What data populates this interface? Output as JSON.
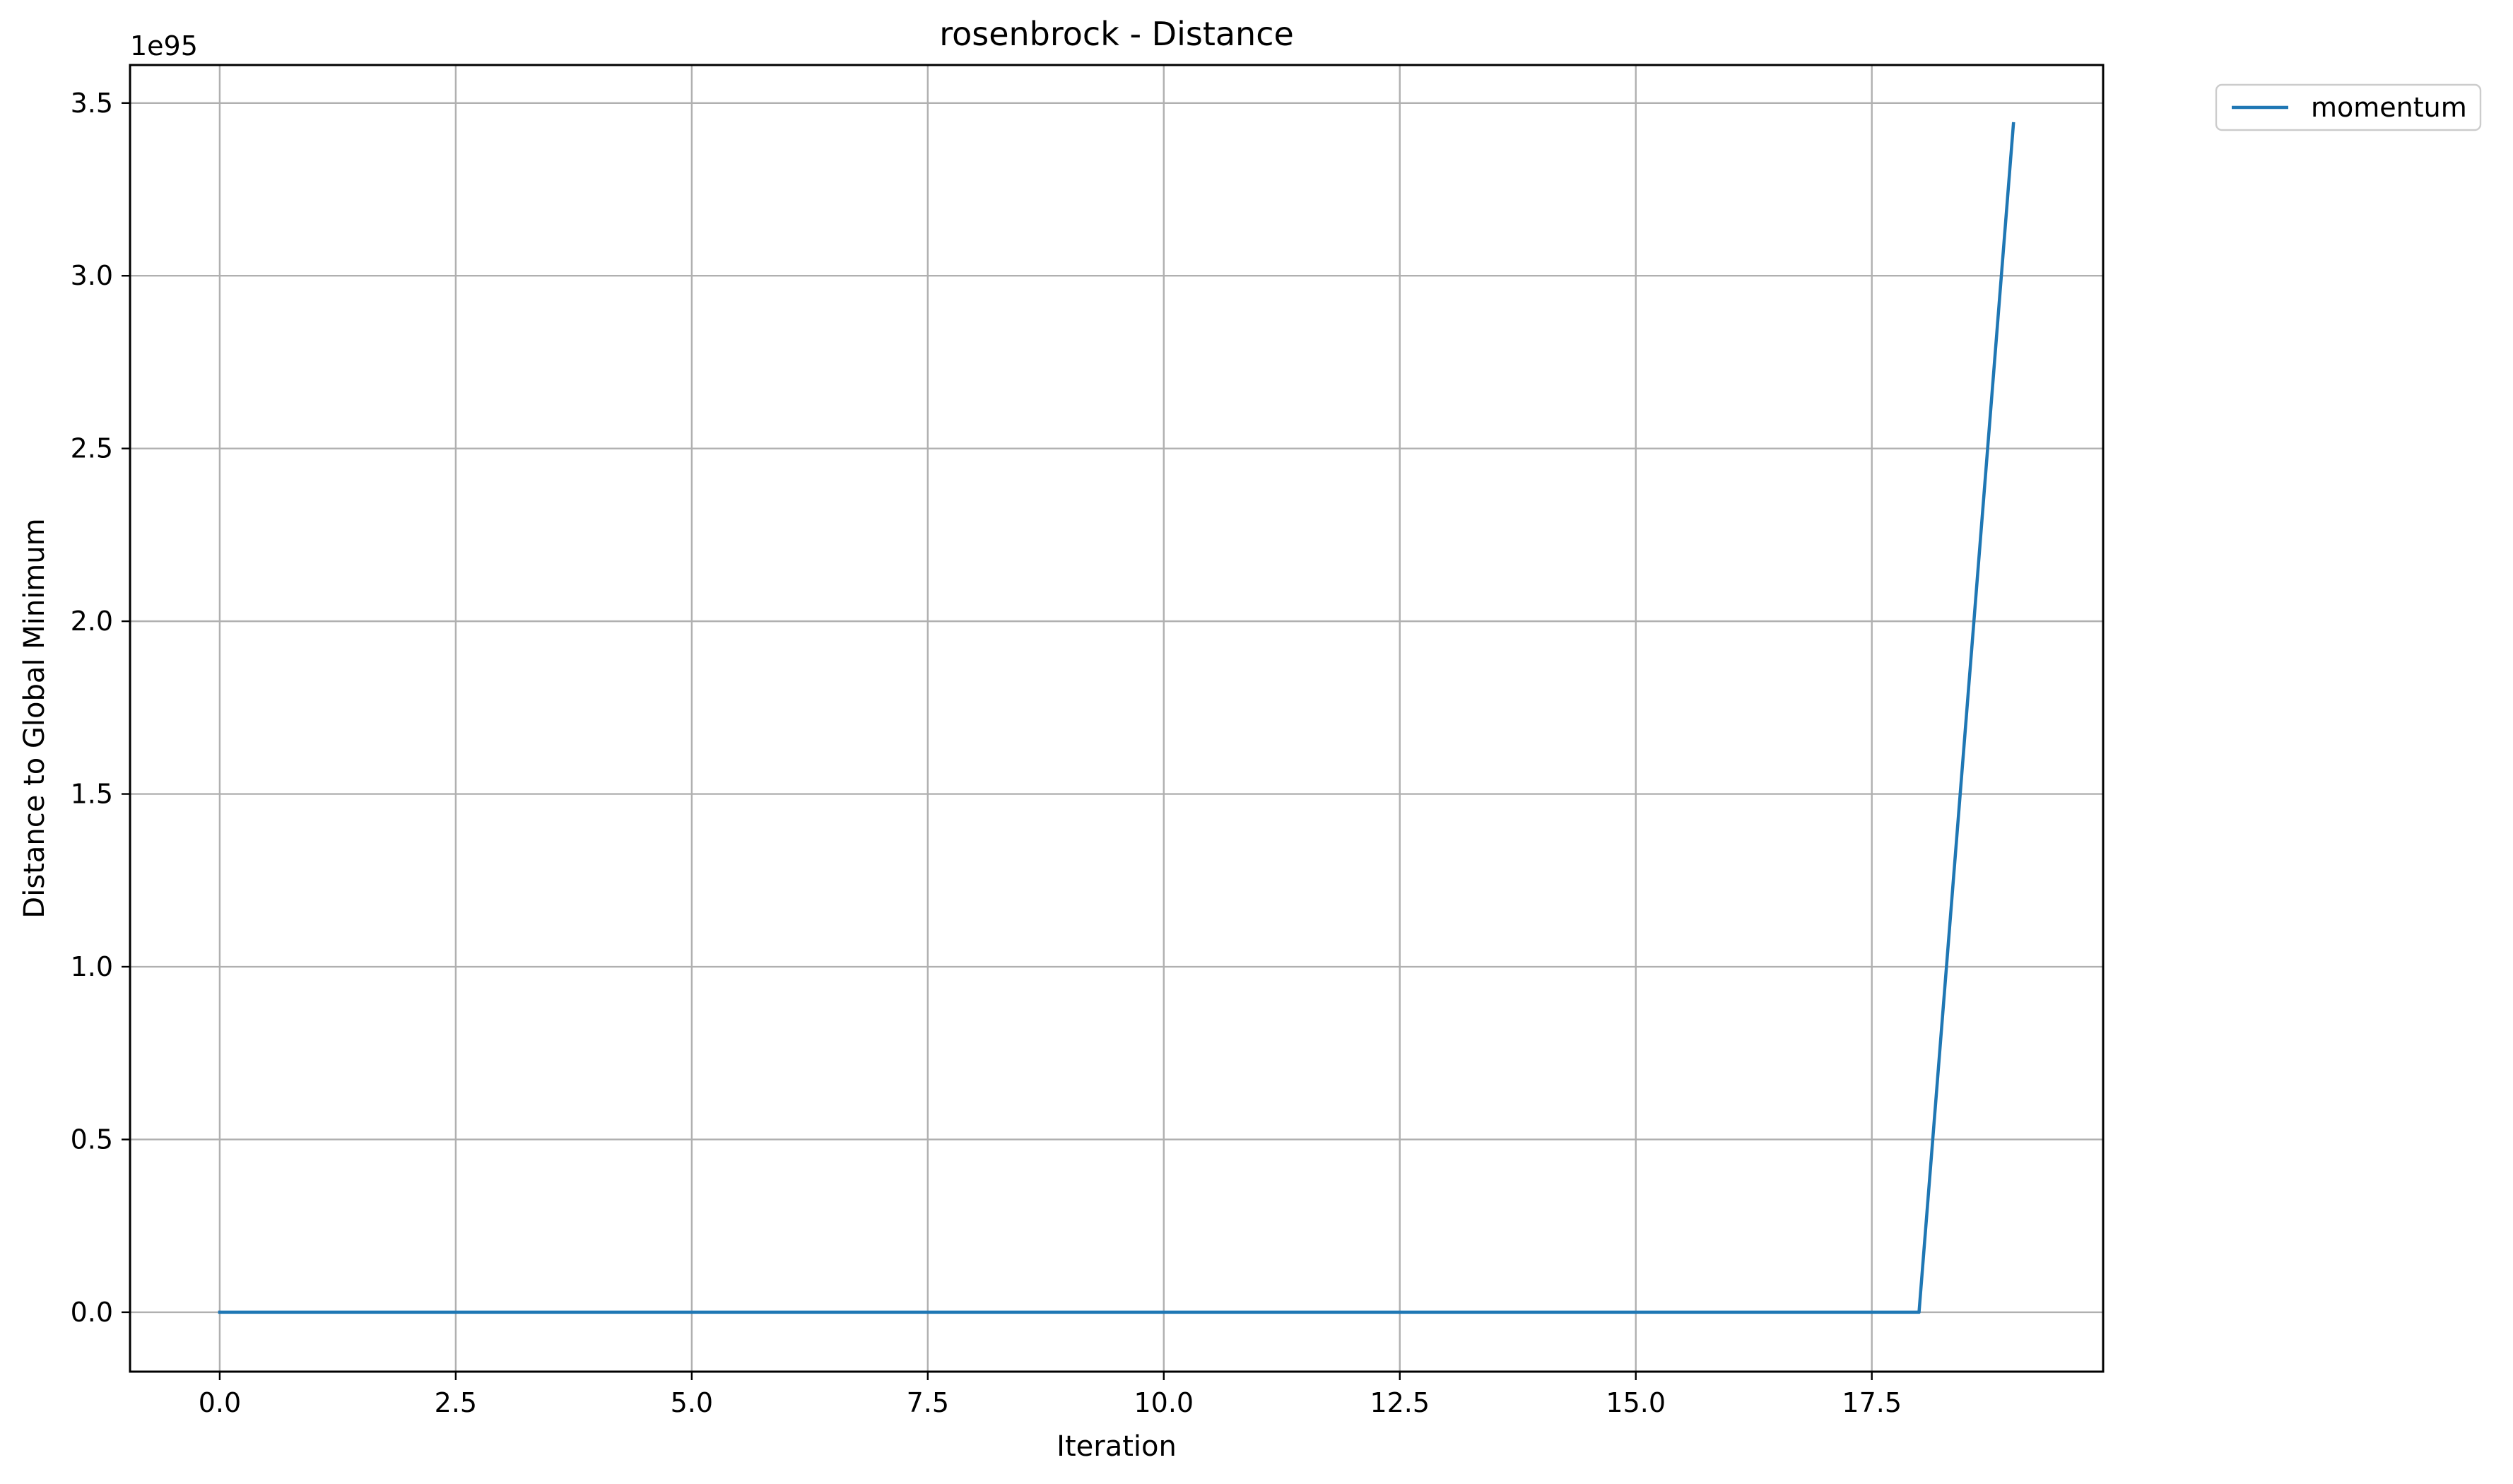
{
  "chart_data": {
    "type": "line",
    "title": "rosenbrock - Distance",
    "xlabel": "Iteration",
    "ylabel": "Distance to Global Minimum",
    "y_offset_label": "1e95",
    "xlim": [
      -0.95,
      19.95
    ],
    "ylim": [
      -0.172,
      3.61
    ],
    "x_ticks": [
      0.0,
      2.5,
      5.0,
      7.5,
      10.0,
      12.5,
      15.0,
      17.5
    ],
    "x_tick_labels": [
      "0.0",
      "2.5",
      "5.0",
      "7.5",
      "10.0",
      "12.5",
      "15.0",
      "17.5"
    ],
    "y_ticks": [
      0.0,
      0.5,
      1.0,
      1.5,
      2.0,
      2.5,
      3.0,
      3.5
    ],
    "y_tick_labels": [
      "0.0",
      "0.5",
      "1.0",
      "1.5",
      "2.0",
      "2.5",
      "3.0",
      "3.5"
    ],
    "grid": true,
    "legend_placement": "outside-top-right",
    "series": [
      {
        "name": "momentum",
        "color": "#1f77b4",
        "x": [
          0,
          1,
          2,
          3,
          4,
          5,
          6,
          7,
          8,
          9,
          10,
          11,
          12,
          13,
          14,
          15,
          16,
          17,
          18,
          19
        ],
        "values": [
          0,
          0,
          0,
          0,
          0,
          0,
          0,
          0,
          0,
          0,
          0,
          0,
          0,
          0,
          0,
          0,
          0,
          0,
          0,
          3.44
        ]
      }
    ]
  }
}
